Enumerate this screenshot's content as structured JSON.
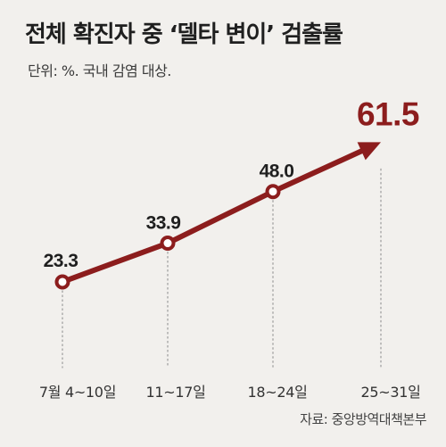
{
  "header": {
    "title": "전체 확진자 중 ‘델타 변이’ 검출률",
    "subtitle": "단위: %. 국내 감염 대상."
  },
  "footer": {
    "source": "자료: 중앙방역대책본부"
  },
  "colors": {
    "background": "#f2f0ed",
    "line": "#8c1d1d",
    "last_value": "#8c1d1d",
    "marker_fill": "#ffffff",
    "dotted_guide": "#9a9a9a"
  },
  "chart_data": {
    "type": "line",
    "categories": [
      "7월 4~10일",
      "11~17일",
      "18~24일",
      "25~31일"
    ],
    "values": [
      23.3,
      33.9,
      48.0,
      61.5
    ],
    "value_labels": [
      "23.3",
      "33.9",
      "48.0",
      "61.5"
    ],
    "title": "전체 확진자 중 ‘델타 변이’ 검출률",
    "subtitle": "단위: %. 국내 감염 대상.",
    "ylim": [
      0,
      80
    ],
    "grid": false,
    "last_point_arrow": true
  }
}
